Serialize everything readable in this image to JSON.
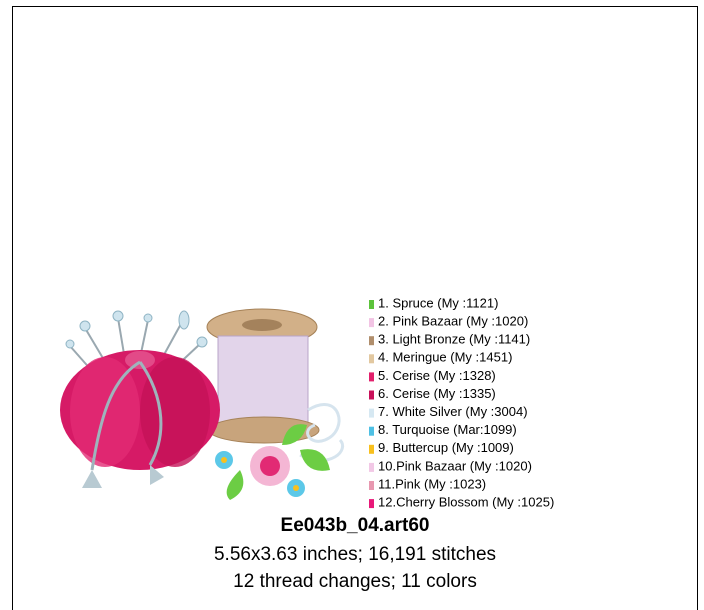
{
  "design": {
    "title": "Ee043b_04.art60",
    "size_line": "5.56x3.63 inches; 16,191 stitches",
    "changes_line": "12 thread changes; 11 colors",
    "threads": [
      {
        "text": "1.  Spruce (My :1121)",
        "color": "#5cc33b"
      },
      {
        "text": "2.  Pink Bazaar (My :1020)",
        "color": "#f2c4e4"
      },
      {
        "text": "3.  Light Bronze (My :1141)",
        "color": "#b08e6c"
      },
      {
        "text": "4.  Meringue (My :1451)",
        "color": "#e2c8a0"
      },
      {
        "text": "5.  Cerise (My :1328)",
        "color": "#e2206c"
      },
      {
        "text": "6.  Cerise (My :1335)",
        "color": "#c8105a"
      },
      {
        "text": "7.  White Silver (My :3004)",
        "color": "#d6e8f2"
      },
      {
        "text": "8.  Turquoise (Mar:1099)",
        "color": "#4ec0e4"
      },
      {
        "text": "9.  Buttercup (My :1009)",
        "color": "#f8c01e"
      },
      {
        "text": "10.Pink Bazaar (My :1020)",
        "color": "#f2c8e6"
      },
      {
        "text": "11.Pink (My :1023)",
        "color": "#e898b0"
      },
      {
        "text": "12.Cherry Blossom (My :1025)",
        "color": "#e81878"
      }
    ]
  }
}
